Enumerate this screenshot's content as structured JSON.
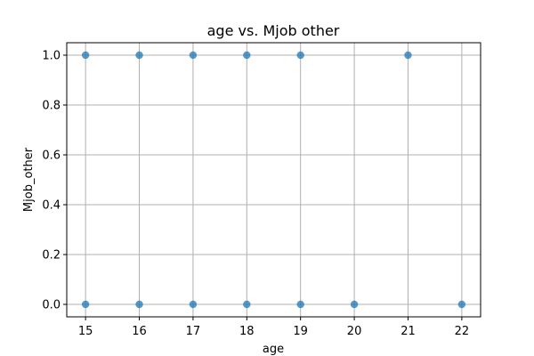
{
  "chart_data": {
    "type": "scatter",
    "title": "age vs. Mjob other",
    "xlabel": "age",
    "ylabel": "Mjob_other",
    "xlim": [
      14.65,
      22.35
    ],
    "ylim": [
      -0.05,
      1.05
    ],
    "xticks": [
      15,
      16,
      17,
      18,
      19,
      20,
      21,
      22
    ],
    "yticks": [
      0.0,
      0.2,
      0.4,
      0.6,
      0.8,
      1.0
    ],
    "ytick_labels": [
      "0.0",
      "0.2",
      "0.4",
      "0.6",
      "0.8",
      "1.0"
    ],
    "grid": true,
    "marker_color": "#1f77b4",
    "points": [
      {
        "x": 15,
        "y": 1
      },
      {
        "x": 16,
        "y": 1
      },
      {
        "x": 17,
        "y": 1
      },
      {
        "x": 18,
        "y": 1
      },
      {
        "x": 19,
        "y": 1
      },
      {
        "x": 21,
        "y": 1
      },
      {
        "x": 15,
        "y": 0
      },
      {
        "x": 16,
        "y": 0
      },
      {
        "x": 17,
        "y": 0
      },
      {
        "x": 18,
        "y": 0
      },
      {
        "x": 19,
        "y": 0
      },
      {
        "x": 20,
        "y": 0
      },
      {
        "x": 22,
        "y": 0
      }
    ]
  }
}
